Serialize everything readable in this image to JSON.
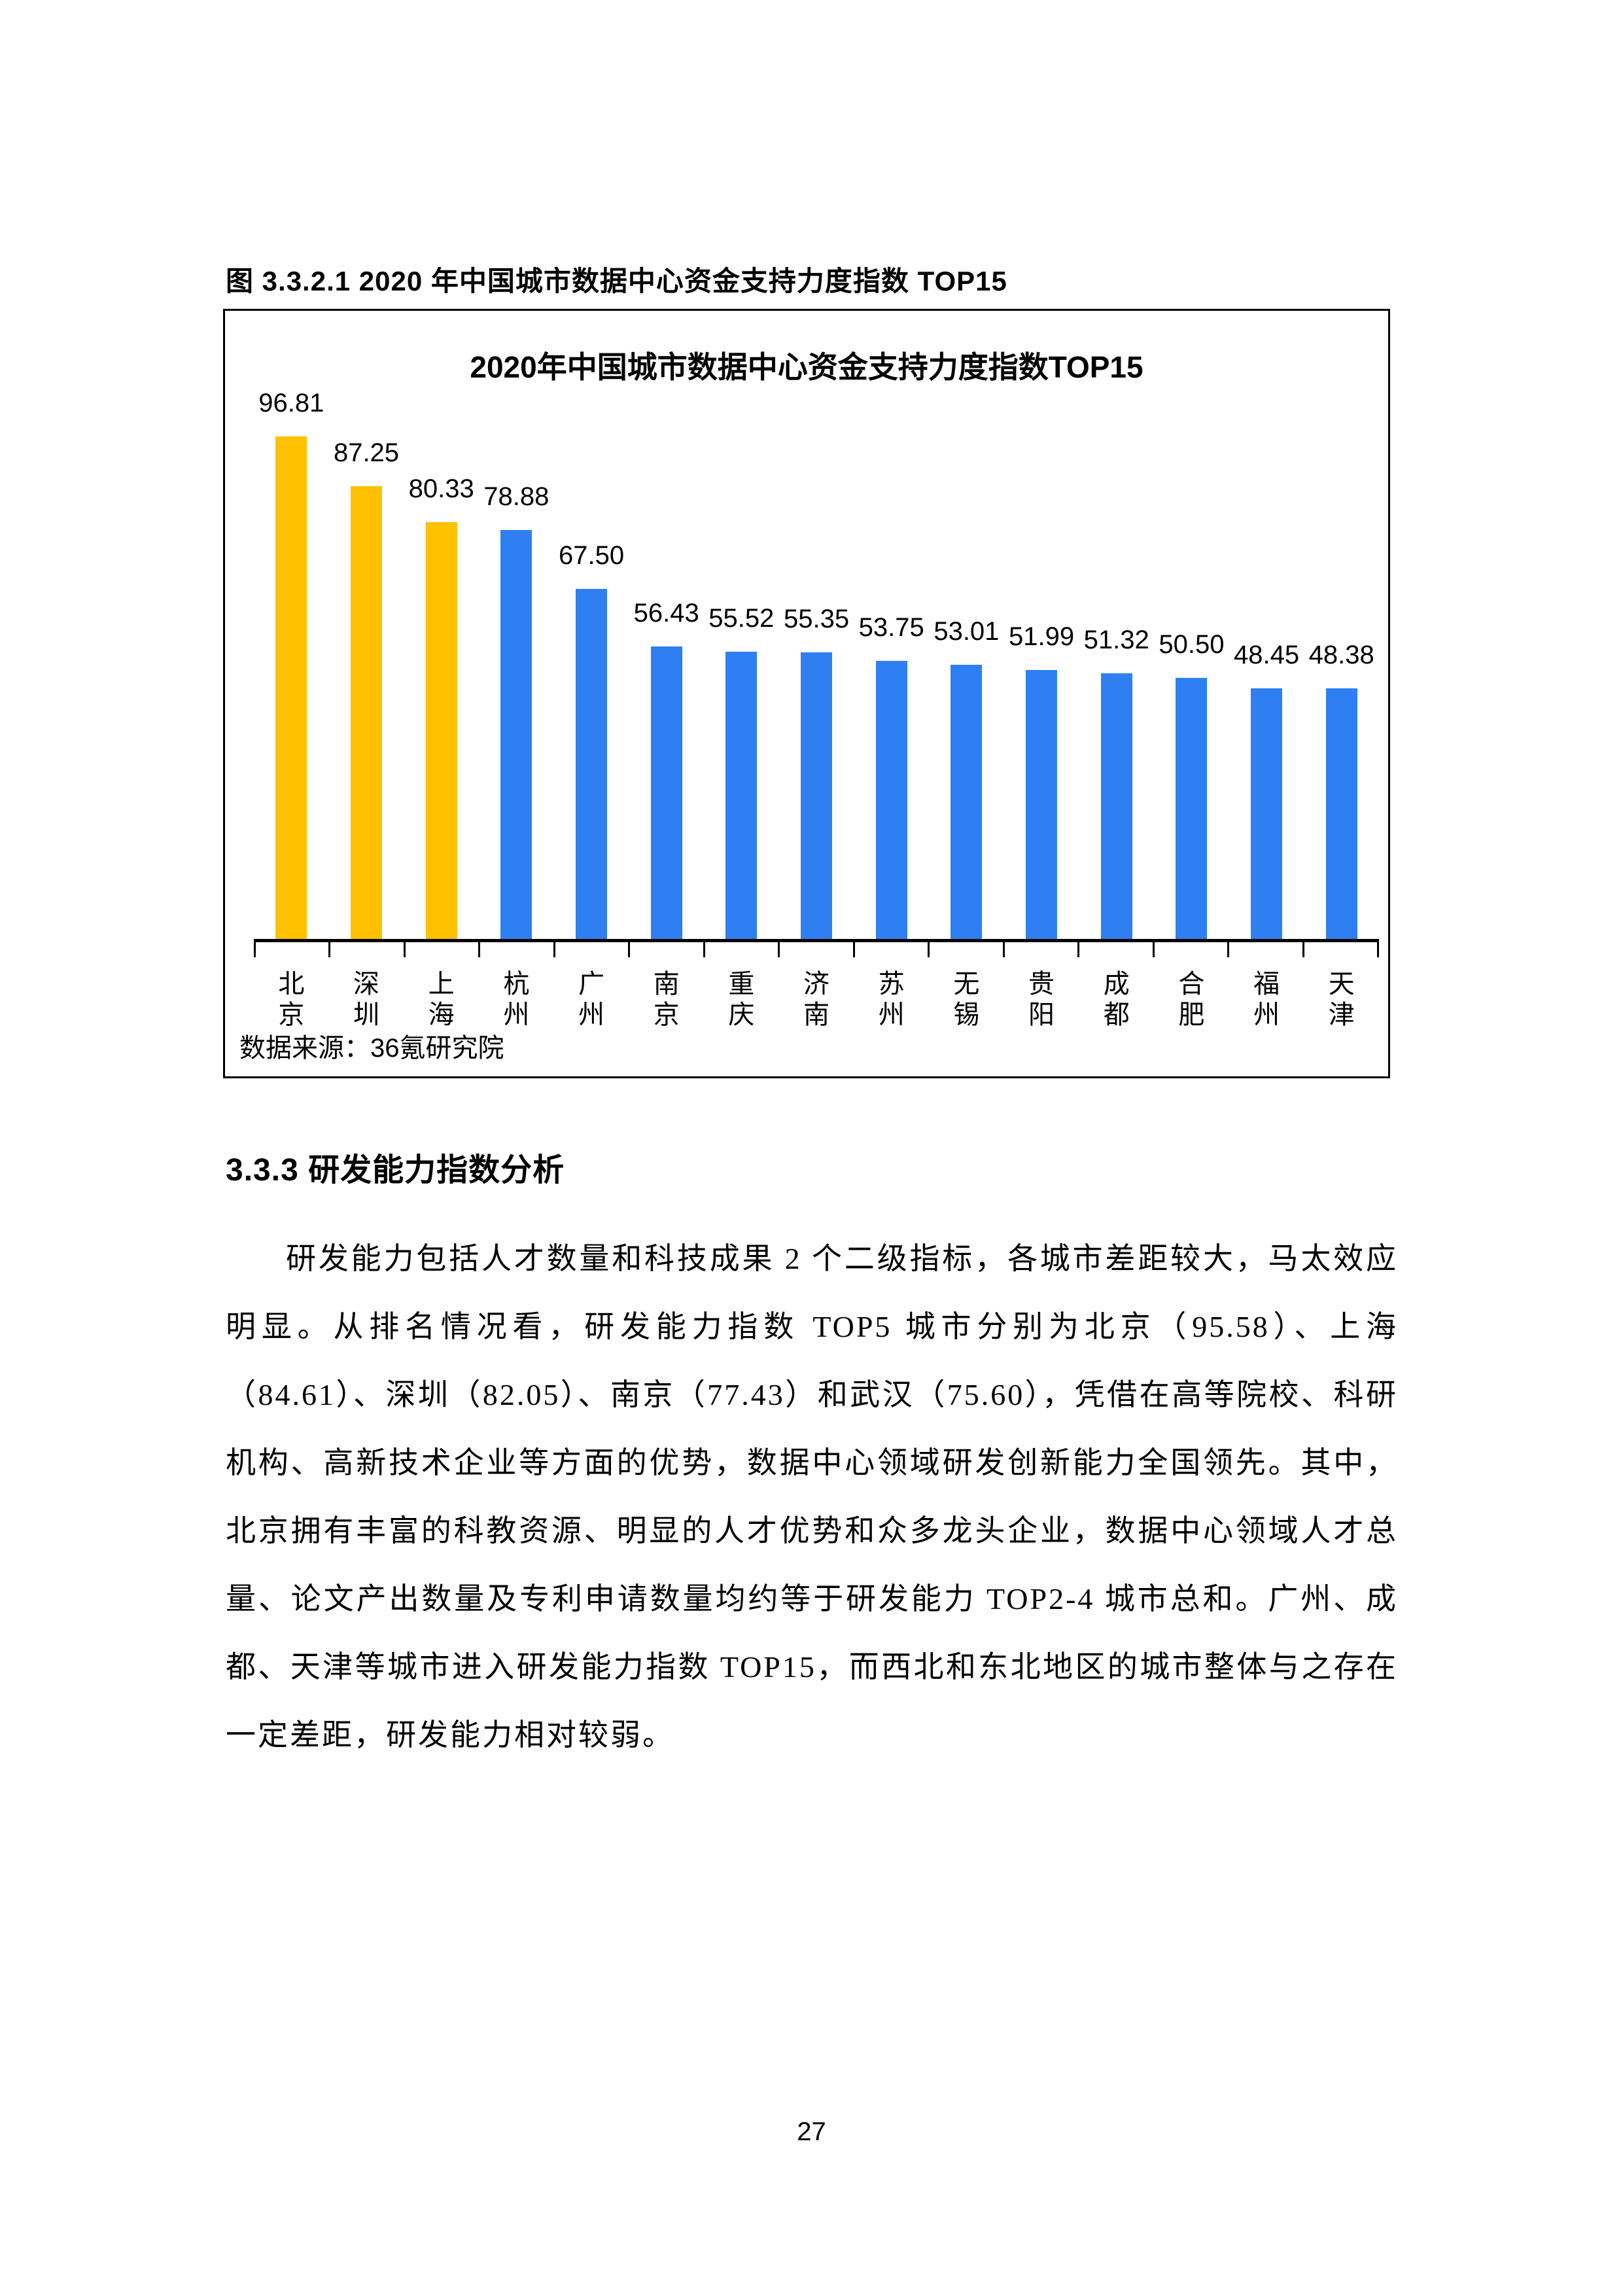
{
  "figure": {
    "caption": "图 3.3.2.1 2020 年中国城市数据中心资金支持力度指数 TOP15"
  },
  "chart_data": {
    "type": "bar",
    "title": "2020年中国城市数据中心资金支持力度指数TOP15",
    "categories": [
      "北京",
      "深圳",
      "上海",
      "杭州",
      "广州",
      "南京",
      "重庆",
      "济南",
      "苏州",
      "无锡",
      "贵阳",
      "成都",
      "合肥",
      "福州",
      "天津"
    ],
    "values": [
      96.81,
      87.25,
      80.33,
      78.88,
      67.5,
      56.43,
      55.52,
      55.35,
      53.75,
      53.01,
      51.99,
      51.32,
      50.5,
      48.45,
      48.38
    ],
    "value_label_decimals": 2,
    "highlight_count": 3,
    "colors": {
      "highlight": "#FFC000",
      "default": "#2E7FF2",
      "axis": "#000000"
    },
    "ylim": [
      0,
      105
    ],
    "grid": false,
    "legend": false,
    "data_labels": true,
    "source_note": "数据来源：36氪研究院"
  },
  "section": {
    "heading": "3.3.3 研发能力指数分析",
    "paragraph": "研发能力包括人才数量和科技成果 2 个二级指标，各城市差距较大，马太效应明显。从排名情况看，研发能力指数 TOP5 城市分别为北京（95.58）、上海（84.61）、深圳（82.05）、南京（77.43）和武汉（75.60），凭借在高等院校、科研机构、高新技术企业等方面的优势，数据中心领域研发创新能力全国领先。其中，北京拥有丰富的科教资源、明显的人才优势和众多龙头企业，数据中心领域人才总量、论文产出数量及专利申请数量均约等于研发能力 TOP2-4 城市总和。广州、成都、天津等城市进入研发能力指数 TOP15，而西北和东北地区的城市整体与之存在一定差距，研发能力相对较弱。"
  },
  "footer": {
    "page_number": "27"
  }
}
